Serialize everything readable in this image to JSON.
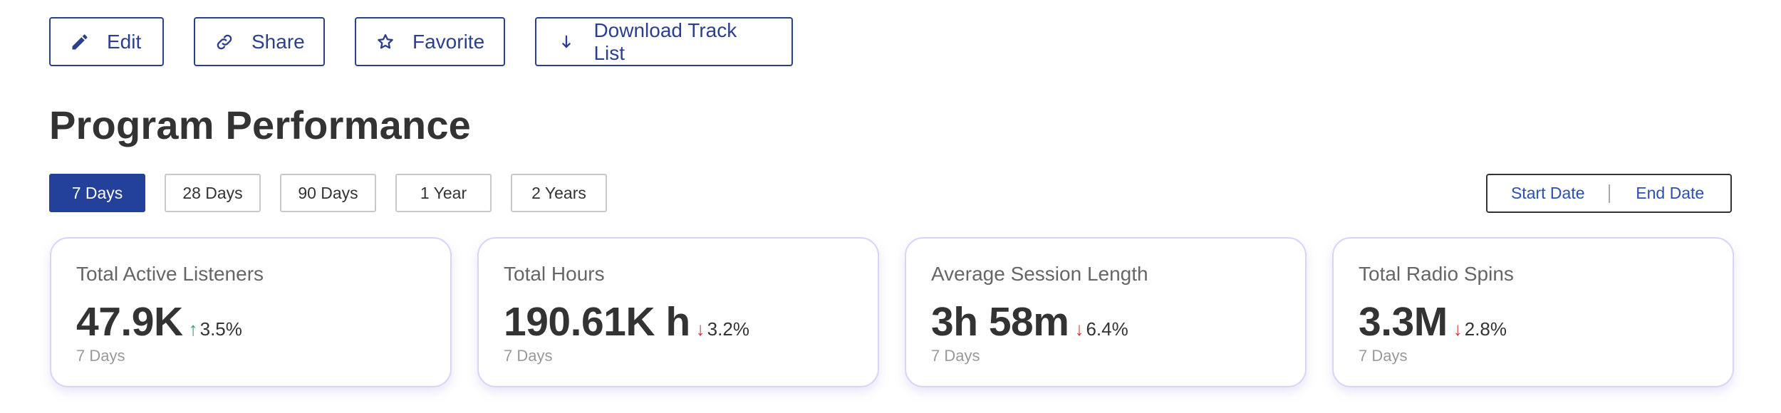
{
  "actions": {
    "edit": "Edit",
    "share": "Share",
    "favorite": "Favorite",
    "download": "Download Track List"
  },
  "title": "Program Performance",
  "ranges": [
    "7 Days",
    "28 Days",
    "90 Days",
    "1 Year",
    "2 Years"
  ],
  "selected_range": "7 Days",
  "date_range": {
    "start": "Start Date",
    "end": "End Date"
  },
  "cards": [
    {
      "label": "Total Active Listeners",
      "value": "47.9K",
      "change": "3.5%",
      "direction": "up",
      "period": "7 Days"
    },
    {
      "label": "Total Hours",
      "value": "190.61K h",
      "change": "3.2%",
      "direction": "down",
      "period": "7 Days"
    },
    {
      "label": "Average Session Length",
      "value": "3h 58m",
      "change": "6.4%",
      "direction": "down",
      "period": "7 Days"
    },
    {
      "label": "Total Radio Spins",
      "value": "3.3M",
      "change": "2.8%",
      "direction": "down",
      "period": "7 Days"
    }
  ],
  "colors": {
    "primary": "#23409a",
    "up": "#2aa56a",
    "down": "#d63a3a",
    "card_border": "#d9d4f7"
  }
}
